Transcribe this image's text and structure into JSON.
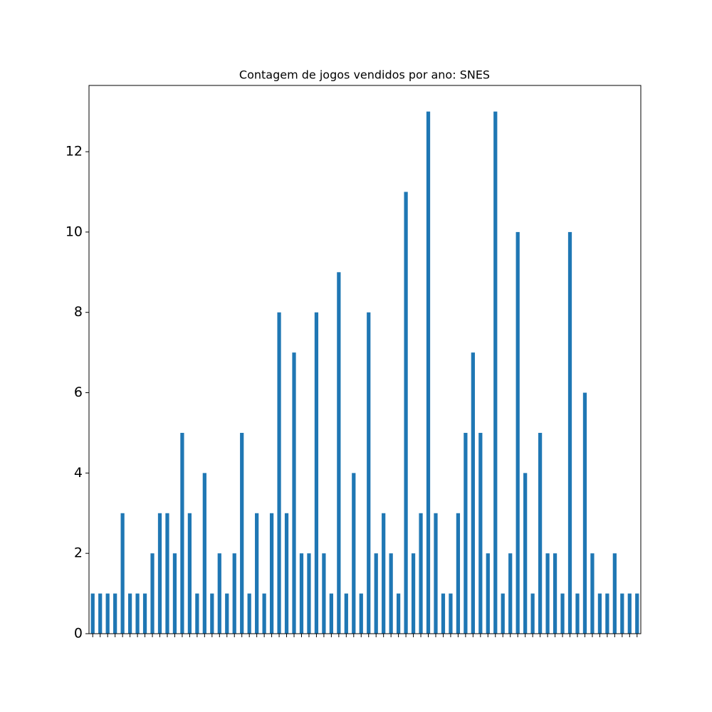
{
  "chart_data": {
    "type": "bar",
    "title": "Contagem de jogos vendidos por ano: SNES",
    "categories": [
      null,
      null,
      null,
      null,
      null,
      null,
      null,
      null,
      null,
      null,
      null,
      null,
      null,
      null,
      null,
      null,
      null,
      null,
      null,
      null,
      null,
      null,
      null,
      null,
      null,
      null,
      null,
      null,
      null,
      null,
      null,
      null,
      null,
      null,
      null,
      null,
      null,
      null,
      null,
      null,
      null,
      null,
      null,
      null,
      null,
      null,
      null,
      null,
      null,
      null,
      null,
      null,
      null,
      null,
      null,
      null,
      null,
      null,
      null,
      null,
      null,
      null,
      null,
      null,
      null,
      null,
      null,
      null,
      null,
      null,
      null,
      null,
      null,
      null
    ],
    "values": [
      1,
      1,
      1,
      1,
      3,
      1,
      1,
      1,
      2,
      3,
      3,
      2,
      5,
      3,
      1,
      4,
      1,
      2,
      1,
      2,
      5,
      1,
      3,
      1,
      3,
      8,
      3,
      7,
      2,
      2,
      8,
      2,
      1,
      9,
      1,
      4,
      1,
      8,
      2,
      3,
      2,
      1,
      11,
      2,
      3,
      13,
      3,
      1,
      1,
      3,
      5,
      7,
      5,
      2,
      13,
      1,
      2,
      10,
      4,
      1,
      5,
      2,
      2,
      1,
      10,
      1,
      6,
      2,
      1,
      1,
      2,
      1,
      1,
      1
    ],
    "color": "#1f77b4",
    "ylim": [
      0,
      13.65
    ],
    "yticks": [
      0,
      2,
      4,
      6,
      8,
      10,
      12
    ],
    "grid": false
  }
}
